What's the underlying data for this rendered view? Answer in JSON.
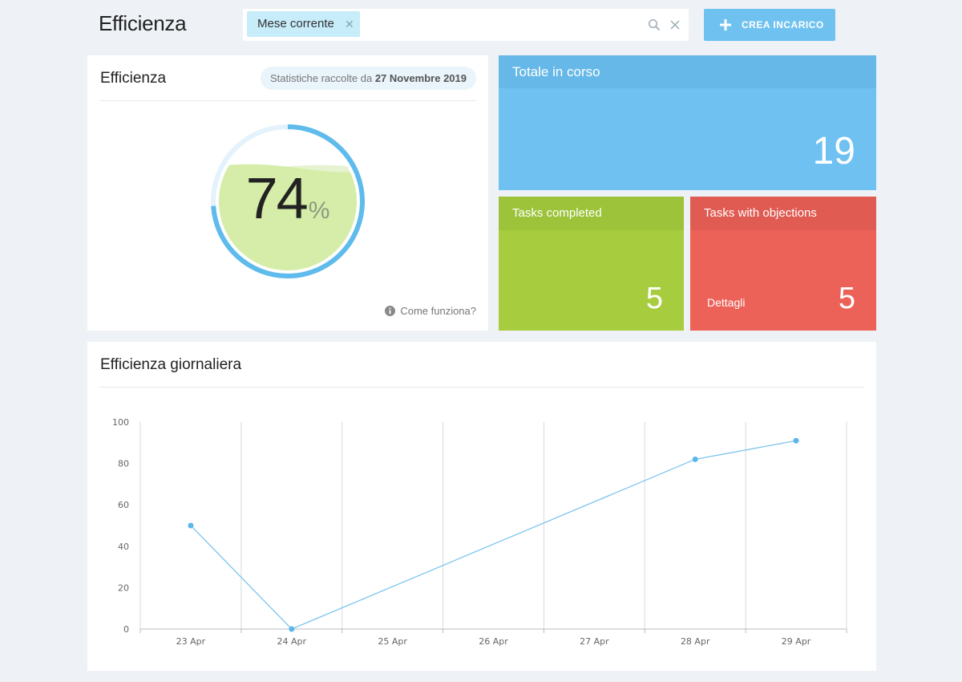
{
  "header": {
    "title": "Efficienza",
    "filter_chip": "Mese corrente",
    "create_button": "CREA INCARICO"
  },
  "efficiency_card": {
    "title": "Efficienza",
    "stats_prefix": "Statistiche raccolte da",
    "stats_date": "27 Novembre 2019",
    "percent_value": "74",
    "percent_sign": "%",
    "percent": 74,
    "how_it_works": "Come funziona?"
  },
  "tiles": {
    "total": {
      "label": "Totale in corso",
      "value": "19"
    },
    "completed": {
      "label": "Tasks completed",
      "value": "5"
    },
    "objections": {
      "label": "Tasks with objections",
      "value": "5",
      "details": "Dettagli"
    }
  },
  "colors": {
    "accent": "#6ec1f1",
    "green": "#a7cd3e",
    "red": "#ec6258",
    "line": "#7cc4ee"
  },
  "chart_data": {
    "type": "line",
    "title": "Efficienza giornaliera",
    "categories": [
      "23 Apr",
      "24 Apr",
      "25 Apr",
      "26 Apr",
      "27 Apr",
      "28 Apr",
      "29 Apr"
    ],
    "series": [
      {
        "values": [
          50,
          0,
          null,
          null,
          null,
          82,
          91
        ]
      }
    ],
    "ylim": [
      0,
      100
    ],
    "yticks": [
      "0",
      "20",
      "40",
      "60",
      "80",
      "100"
    ],
    "grid": "vertical"
  }
}
